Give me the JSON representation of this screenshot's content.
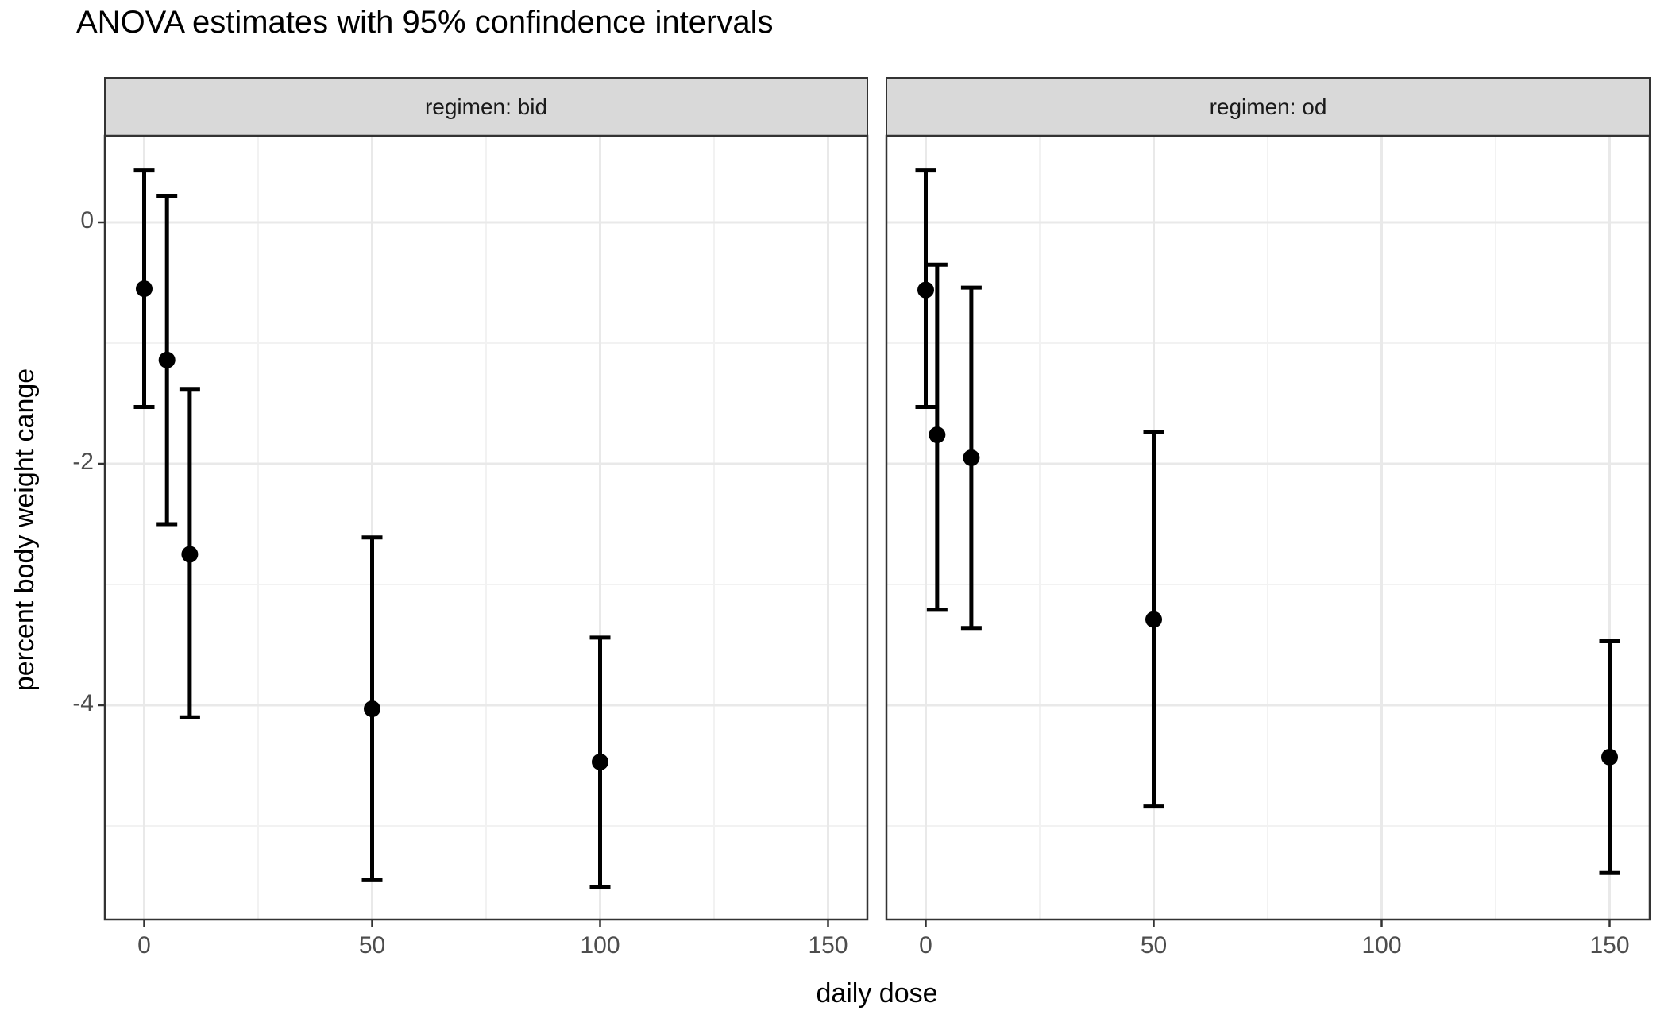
{
  "title": "ANOVA estimates with 95% confindence intervals",
  "chart_data": {
    "type": "scatter",
    "subtype": "point-with-errorbar",
    "error_bars": "95% confidence intervals",
    "title": "ANOVA estimates with 95% confindence intervals",
    "xlabel": "daily dose",
    "ylabel": "percent body weight cange",
    "facet_variable": "regimen",
    "legend_position": "none",
    "grid": true,
    "x_ticks": [
      0,
      50,
      100,
      150
    ],
    "x_minor_ticks": [
      25,
      75,
      125
    ],
    "y_ticks": [
      0,
      -2,
      -4
    ],
    "y_minor_ticks": [
      -1,
      -3,
      -5
    ],
    "x_range": [
      -8.6,
      158.6
    ],
    "y_range": [
      -5.8,
      0.72
    ],
    "facets": [
      {
        "label": "regimen: bid",
        "points": [
          {
            "dose": 0,
            "estimate": -0.55,
            "ci_lower": -1.53,
            "ci_upper": 0.43
          },
          {
            "dose": 5,
            "estimate": -1.14,
            "ci_lower": -2.5,
            "ci_upper": 0.22
          },
          {
            "dose": 10,
            "estimate": -2.75,
            "ci_lower": -4.1,
            "ci_upper": -1.38
          },
          {
            "dose": 50,
            "estimate": -4.03,
            "ci_lower": -5.45,
            "ci_upper": -2.61
          },
          {
            "dose": 100,
            "estimate": -4.47,
            "ci_lower": -5.51,
            "ci_upper": -3.44
          }
        ]
      },
      {
        "label": "regimen: od",
        "points": [
          {
            "dose": 0,
            "estimate": -0.56,
            "ci_lower": -1.53,
            "ci_upper": 0.43
          },
          {
            "dose": 2.5,
            "estimate": -1.76,
            "ci_lower": -3.21,
            "ci_upper": -0.35
          },
          {
            "dose": 10,
            "estimate": -1.95,
            "ci_lower": -3.36,
            "ci_upper": -0.54
          },
          {
            "dose": 50,
            "estimate": -3.29,
            "ci_lower": -4.84,
            "ci_upper": -1.74
          },
          {
            "dose": 150,
            "estimate": -4.43,
            "ci_lower": -5.39,
            "ci_upper": -3.47
          }
        ]
      }
    ]
  },
  "colors": {
    "point": "#000000",
    "errorbar": "#000000",
    "strip_background": "#d9d9d9",
    "strip_border": "#333333",
    "panel_border": "#333333",
    "tick_mark": "#333333",
    "grid_major": "#e9e9e9",
    "grid_minor": "#f2f2f2",
    "tick_label": "#4d4d4d",
    "axis_title": "#000000",
    "background": "#ffffff"
  }
}
